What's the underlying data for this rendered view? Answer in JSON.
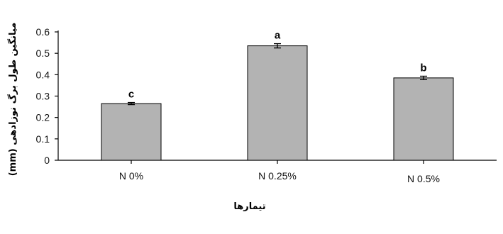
{
  "chart_data": {
    "type": "bar",
    "categories": [
      "N 0%",
      "N 0.25%",
      "N 0.5%"
    ],
    "values": [
      0.265,
      0.535,
      0.385
    ],
    "errors": [
      0.005,
      0.01,
      0.008
    ],
    "significance_letters": [
      "c",
      "a",
      "b"
    ],
    "ylabel": "(mm) میانگین طول برگ نوزادهی",
    "xlabel": "تیمارها",
    "ylim": [
      0,
      0.6
    ],
    "yticks": [
      0,
      0.1,
      0.2,
      0.3,
      0.4,
      0.5,
      0.6
    ],
    "ytick_labels": [
      "0",
      "0.1",
      "0.2",
      "0.3",
      "0.4",
      "0.5",
      "0.6"
    ],
    "bar_color": "#b3b3b3",
    "grid": false,
    "legend": "none"
  }
}
